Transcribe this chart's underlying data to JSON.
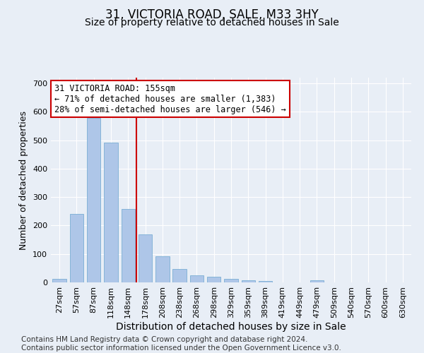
{
  "title": "31, VICTORIA ROAD, SALE, M33 3HY",
  "subtitle": "Size of property relative to detached houses in Sale",
  "xlabel": "Distribution of detached houses by size in Sale",
  "ylabel": "Number of detached properties",
  "categories": [
    "27sqm",
    "57sqm",
    "87sqm",
    "118sqm",
    "148sqm",
    "178sqm",
    "208sqm",
    "238sqm",
    "268sqm",
    "298sqm",
    "329sqm",
    "359sqm",
    "389sqm",
    "419sqm",
    "449sqm",
    "479sqm",
    "509sqm",
    "540sqm",
    "570sqm",
    "600sqm",
    "630sqm"
  ],
  "values": [
    12,
    242,
    578,
    492,
    258,
    170,
    93,
    46,
    25,
    20,
    13,
    8,
    5,
    0,
    0,
    7,
    0,
    0,
    0,
    0,
    0
  ],
  "bar_color": "#aec6e8",
  "bar_edge_color": "#7aafd4",
  "reference_line_x": 4.5,
  "reference_line_color": "#cc0000",
  "annotation_line1": "31 VICTORIA ROAD: 155sqm",
  "annotation_line2": "← 71% of detached houses are smaller (1,383)",
  "annotation_line3": "28% of semi-detached houses are larger (546) →",
  "annotation_box_color": "#ffffff",
  "annotation_box_edge_color": "#cc0000",
  "ylim": [
    0,
    720
  ],
  "yticks": [
    0,
    100,
    200,
    300,
    400,
    500,
    600,
    700
  ],
  "background_color": "#e8eef6",
  "plot_background_color": "#e8eef6",
  "footer_text": "Contains HM Land Registry data © Crown copyright and database right 2024.\nContains public sector information licensed under the Open Government Licence v3.0.",
  "title_fontsize": 12,
  "subtitle_fontsize": 10,
  "xlabel_fontsize": 10,
  "ylabel_fontsize": 9,
  "tick_fontsize": 8,
  "annotation_fontsize": 8.5,
  "footer_fontsize": 7.5
}
